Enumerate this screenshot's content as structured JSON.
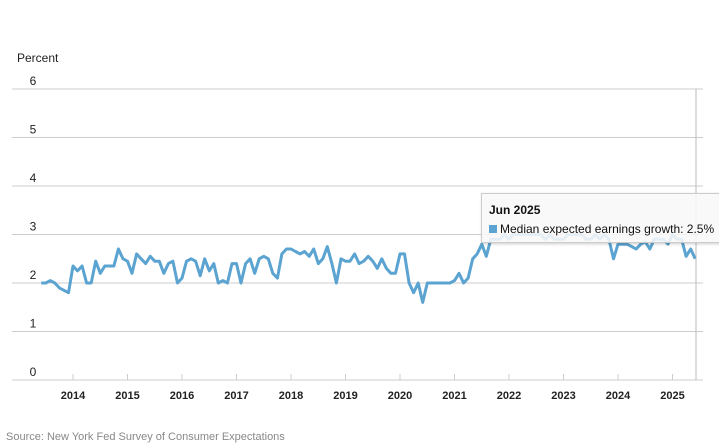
{
  "chart_data": {
    "type": "line",
    "ylabel": "Percent",
    "ylim": [
      0,
      6
    ],
    "yticks": [
      "0",
      "1",
      "2",
      "3",
      "4",
      "5",
      "6"
    ],
    "xticks": [
      "2014",
      "2015",
      "2016",
      "2017",
      "2018",
      "2019",
      "2020",
      "2021",
      "2022",
      "2023",
      "2024",
      "2025"
    ],
    "x_start": "Jun 2013",
    "x_end": "Jun 2025",
    "frequency": "monthly",
    "grid": true,
    "series": [
      {
        "name": "Median expected earnings growth",
        "color": "#5ba3d0",
        "values": [
          2.0,
          2.0,
          2.05,
          2.0,
          1.9,
          1.85,
          1.8,
          2.35,
          2.25,
          2.35,
          2.0,
          2.0,
          2.45,
          2.2,
          2.35,
          2.35,
          2.35,
          2.7,
          2.5,
          2.45,
          2.2,
          2.6,
          2.5,
          2.4,
          2.55,
          2.45,
          2.45,
          2.2,
          2.4,
          2.45,
          2.0,
          2.1,
          2.45,
          2.5,
          2.45,
          2.15,
          2.5,
          2.25,
          2.4,
          2.0,
          2.05,
          2.0,
          2.4,
          2.4,
          2.0,
          2.4,
          2.5,
          2.2,
          2.5,
          2.55,
          2.5,
          2.2,
          2.1,
          2.6,
          2.7,
          2.7,
          2.65,
          2.6,
          2.65,
          2.55,
          2.7,
          2.4,
          2.5,
          2.75,
          2.4,
          2.0,
          2.5,
          2.45,
          2.45,
          2.6,
          2.4,
          2.45,
          2.55,
          2.45,
          2.3,
          2.5,
          2.3,
          2.2,
          2.2,
          2.6,
          2.6,
          2.0,
          1.8,
          2.0,
          1.6,
          2.0,
          2.0,
          2.0,
          2.0,
          2.0,
          2.0,
          2.05,
          2.2,
          2.0,
          2.1,
          2.5,
          2.6,
          2.8,
          2.55,
          2.9,
          2.9,
          2.9,
          3.0,
          2.9,
          3.0,
          3.0,
          3.0,
          3.0,
          3.0,
          3.0,
          3.0,
          2.9,
          3.0,
          2.9,
          2.9,
          2.9,
          3.0,
          3.0,
          3.0,
          3.0,
          2.9,
          2.9,
          3.0,
          2.9,
          3.0,
          2.9,
          2.5,
          2.8,
          2.8,
          2.8,
          2.75,
          2.7,
          2.8,
          2.85,
          2.7,
          2.9,
          2.9,
          2.9,
          2.8,
          3.0,
          2.9,
          2.9,
          2.55,
          2.7,
          2.5
        ]
      }
    ],
    "tooltip": {
      "title": "Jun 2025",
      "label": "Median expected earnings growth: 2.5%"
    }
  },
  "source": "Source: New York Fed Survey of Consumer Expectations"
}
